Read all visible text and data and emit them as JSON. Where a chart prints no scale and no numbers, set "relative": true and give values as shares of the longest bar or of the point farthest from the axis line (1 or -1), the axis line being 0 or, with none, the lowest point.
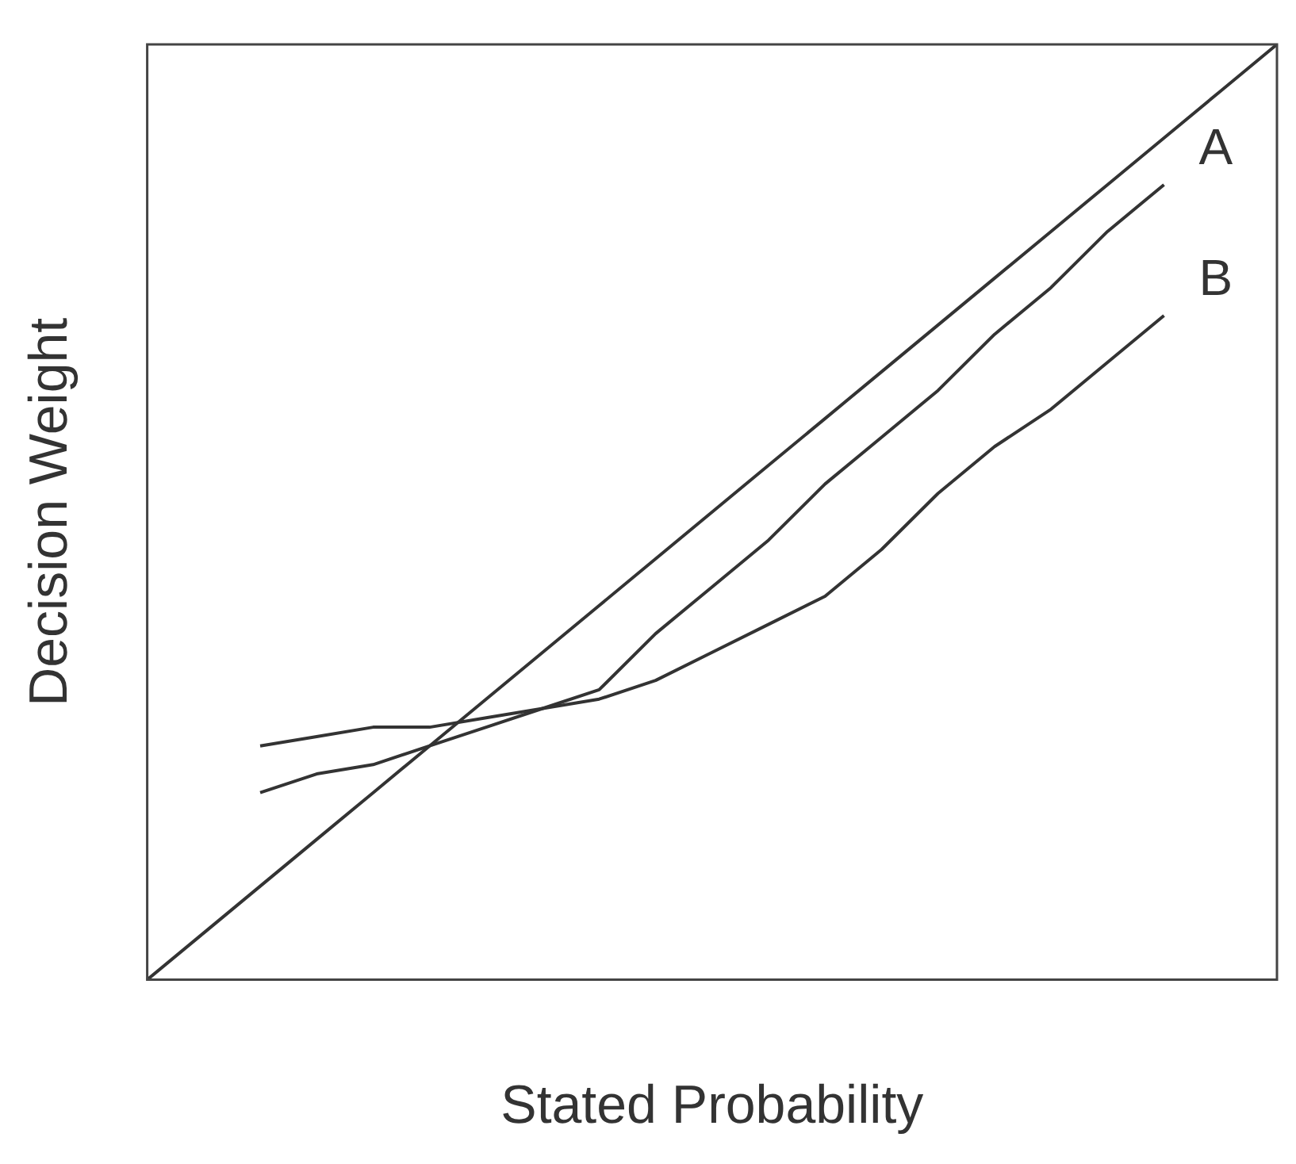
{
  "chart_data": {
    "type": "line",
    "relative": true,
    "xlabel": "Stated Probability",
    "ylabel": "Decision Weight",
    "categories": [
      null,
      null,
      null,
      null,
      null,
      null,
      null,
      null,
      null,
      null,
      null,
      null,
      null,
      null,
      null,
      null,
      null,
      null,
      null,
      null,
      null
    ],
    "series": [
      {
        "color": "#333333",
        "values": [
          0,
          0.05,
          0.1,
          0.15,
          0.2,
          0.25,
          0.3,
          0.35,
          0.4,
          0.45,
          0.5,
          0.55,
          0.6,
          0.65,
          0.7,
          0.75,
          0.8,
          0.85,
          0.9,
          0.95,
          1
        ]
      },
      {
        "name": "A",
        "color": "#333333",
        "values": [
          null,
          null,
          0.2,
          0.22,
          0.23,
          0.25,
          0.27,
          0.29,
          0.31,
          0.37,
          0.42,
          0.47,
          0.53,
          0.58,
          0.63,
          0.69,
          0.74,
          0.8,
          0.85,
          null,
          null
        ]
      },
      {
        "name": "B",
        "color": "#333333",
        "values": [
          null,
          null,
          0.25,
          0.26,
          0.27,
          0.27,
          0.28,
          0.29,
          0.3,
          0.32,
          0.35,
          0.38,
          0.41,
          0.46,
          0.52,
          0.57,
          0.61,
          0.66,
          0.71,
          null,
          null
        ]
      }
    ],
    "legend": false,
    "grid": false,
    "marker": "none",
    "line_style": "solid"
  }
}
